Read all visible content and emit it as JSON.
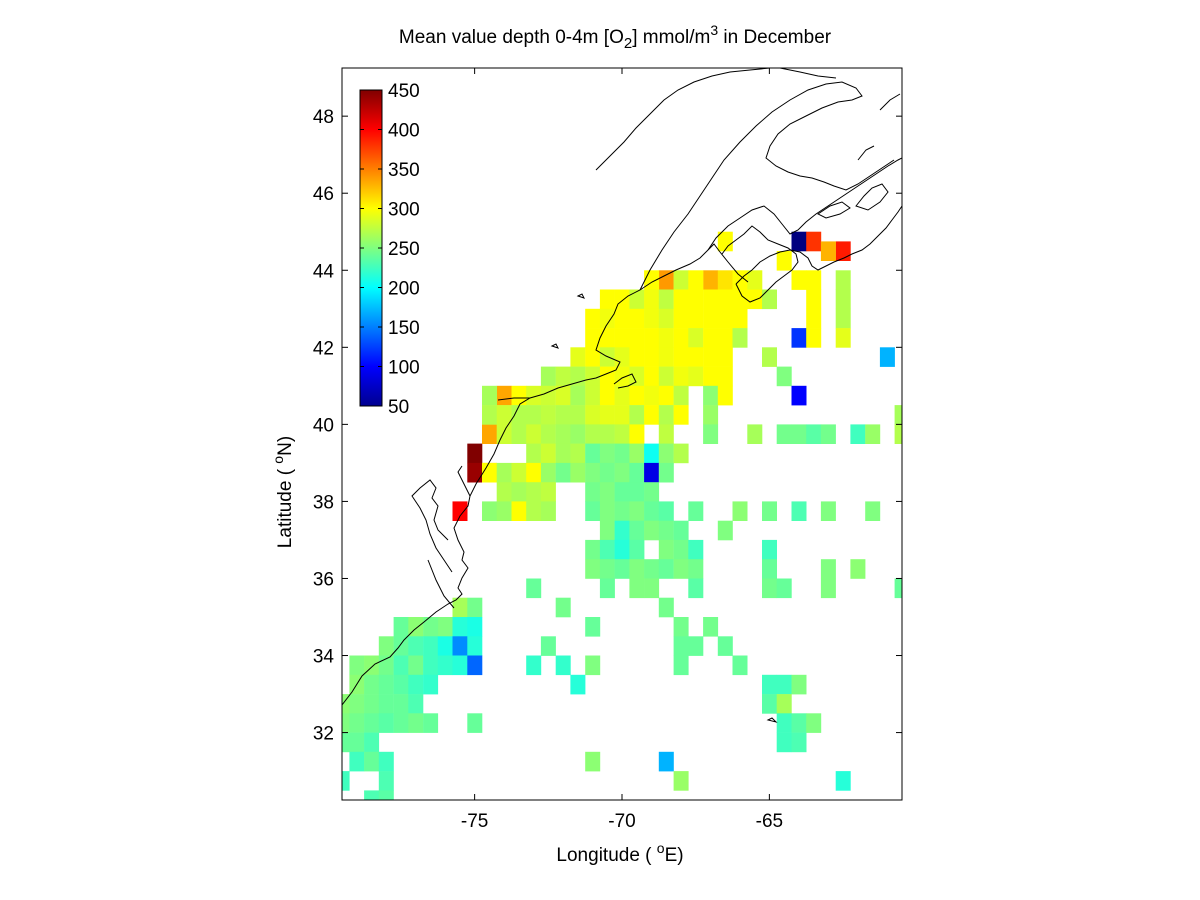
{
  "chart_data": {
    "type": "heatmap",
    "title_prefix": "Mean value depth 0-4m [O",
    "title_sub": "2",
    "title_mid": "] mmol/m",
    "title_sup": "3",
    "title_suffix": " in December",
    "xlabel_prefix": "Longitude ( ",
    "xlabel_sup": "o",
    "xlabel_suffix": "E)",
    "ylabel_prefix": "Latitude ( ",
    "ylabel_sup": "o",
    "ylabel_suffix": "N)",
    "xlim": [
      -79.5,
      -60.5
    ],
    "ylim": [
      30.25,
      49.25
    ],
    "x_ticks": [
      -75,
      -70,
      -65
    ],
    "x_tick_labels": [
      "-75",
      "-70",
      "-65"
    ],
    "y_ticks": [
      32,
      34,
      36,
      38,
      40,
      42,
      44,
      46,
      48
    ],
    "y_tick_labels": [
      "32",
      "34",
      "36",
      "38",
      "40",
      "42",
      "44",
      "46",
      "48"
    ],
    "colorbar": {
      "range": [
        50,
        450
      ],
      "ticks": [
        50,
        100,
        150,
        200,
        250,
        300,
        350,
        400,
        450
      ],
      "tick_labels": [
        "50",
        "100",
        "150",
        "200",
        "250",
        "300",
        "350",
        "400",
        "450"
      ],
      "colormap": "jet"
    },
    "cell_size_deg": 0.5,
    "cells": [
      [
        -75,
        39.25,
        450
      ],
      [
        -75,
        38.75,
        440
      ],
      [
        -75.5,
        37.75,
        400
      ],
      [
        -74.5,
        38.75,
        330
      ],
      [
        -74,
        40.75,
        335
      ],
      [
        -74.5,
        39.75,
        335
      ],
      [
        -64,
        44.75,
        40
      ],
      [
        -63.5,
        44.75,
        380
      ],
      [
        -62.5,
        44.5,
        390
      ],
      [
        -63,
        44.5,
        330
      ],
      [
        -68.5,
        43.75,
        340
      ],
      [
        -67,
        43.75,
        330
      ],
      [
        -66.5,
        43.75,
        310
      ],
      [
        -66,
        43.75,
        300
      ],
      [
        -69,
        43.75,
        300
      ],
      [
        -68,
        43.75,
        280
      ],
      [
        -67.5,
        43.75,
        300
      ],
      [
        -65.5,
        43.75,
        290
      ],
      [
        -64,
        43.75,
        300
      ],
      [
        -63.5,
        43.75,
        300
      ],
      [
        -62.5,
        43.75,
        270
      ],
      [
        -64.5,
        44.25,
        300
      ],
      [
        -66.5,
        44.75,
        300
      ],
      [
        -70.5,
        43.25,
        300
      ],
      [
        -70,
        43.25,
        300
      ],
      [
        -69.5,
        43.25,
        280
      ],
      [
        -69,
        43.25,
        295
      ],
      [
        -68.5,
        43.25,
        275
      ],
      [
        -68,
        43.25,
        300
      ],
      [
        -67.5,
        43.25,
        300
      ],
      [
        -67,
        43.25,
        300
      ],
      [
        -66.5,
        43.25,
        300
      ],
      [
        -66,
        43.25,
        300
      ],
      [
        -65.5,
        43.25,
        300
      ],
      [
        -65,
        43.25,
        270
      ],
      [
        -63.5,
        43.25,
        300
      ],
      [
        -62.5,
        43.25,
        270
      ],
      [
        -71,
        42.75,
        300
      ],
      [
        -70.5,
        42.75,
        295
      ],
      [
        -70,
        42.75,
        300
      ],
      [
        -69.5,
        42.75,
        300
      ],
      [
        -69,
        42.75,
        295
      ],
      [
        -68.5,
        42.75,
        285
      ],
      [
        -68,
        42.75,
        300
      ],
      [
        -67.5,
        42.75,
        300
      ],
      [
        -67,
        42.75,
        300
      ],
      [
        -66.5,
        42.75,
        300
      ],
      [
        -66,
        42.75,
        300
      ],
      [
        -63.5,
        42.75,
        300
      ],
      [
        -62.5,
        42.75,
        270
      ],
      [
        -71,
        42.25,
        300
      ],
      [
        -70.5,
        42.25,
        300
      ],
      [
        -70,
        42.25,
        300
      ],
      [
        -69.5,
        42.25,
        300
      ],
      [
        -69,
        42.25,
        300
      ],
      [
        -68.5,
        42.25,
        295
      ],
      [
        -68,
        42.25,
        300
      ],
      [
        -67.5,
        42.25,
        285
      ],
      [
        -67,
        42.25,
        300
      ],
      [
        -66.5,
        42.25,
        300
      ],
      [
        -66,
        42.25,
        270
      ],
      [
        -64,
        42.25,
        120
      ],
      [
        -63.5,
        42.25,
        300
      ],
      [
        -62.5,
        42.25,
        290
      ],
      [
        -71.5,
        41.75,
        290
      ],
      [
        -71,
        41.75,
        300
      ],
      [
        -70.5,
        41.75,
        280
      ],
      [
        -70,
        41.75,
        290
      ],
      [
        -69.5,
        41.75,
        300
      ],
      [
        -69,
        41.75,
        300
      ],
      [
        -68.5,
        41.75,
        295
      ],
      [
        -68,
        41.75,
        300
      ],
      [
        -67.5,
        41.75,
        300
      ],
      [
        -67,
        41.75,
        300
      ],
      [
        -66.5,
        41.75,
        300
      ],
      [
        -65,
        41.75,
        270
      ],
      [
        -61,
        41.75,
        170
      ],
      [
        -72.5,
        41.25,
        265
      ],
      [
        -72,
        41.25,
        275
      ],
      [
        -71.5,
        41.25,
        270
      ],
      [
        -71,
        41.25,
        280
      ],
      [
        -70.5,
        41.25,
        300
      ],
      [
        -70,
        41.25,
        295
      ],
      [
        -69.5,
        41.25,
        285
      ],
      [
        -69,
        41.25,
        300
      ],
      [
        -68.5,
        41.25,
        280
      ],
      [
        -68,
        41.25,
        295
      ],
      [
        -67.5,
        41.25,
        290
      ],
      [
        -67,
        41.25,
        300
      ],
      [
        -66.5,
        41.25,
        300
      ],
      [
        -64.5,
        41.25,
        250
      ],
      [
        -74.5,
        40.75,
        265
      ],
      [
        -73.5,
        40.75,
        300
      ],
      [
        -73,
        40.75,
        285
      ],
      [
        -72.5,
        40.75,
        280
      ],
      [
        -72,
        40.75,
        285
      ],
      [
        -71.5,
        40.75,
        265
      ],
      [
        -71,
        40.75,
        280
      ],
      [
        -70.5,
        40.75,
        300
      ],
      [
        -70,
        40.75,
        290
      ],
      [
        -69.5,
        40.75,
        300
      ],
      [
        -69,
        40.75,
        295
      ],
      [
        -68.5,
        40.75,
        300
      ],
      [
        -68,
        40.75,
        275
      ],
      [
        -67,
        40.75,
        255
      ],
      [
        -66.5,
        40.75,
        300
      ],
      [
        -64,
        40.75,
        100
      ],
      [
        -74.5,
        40.25,
        270
      ],
      [
        -74,
        40.25,
        280
      ],
      [
        -73.5,
        40.25,
        270
      ],
      [
        -73,
        40.25,
        270
      ],
      [
        -72.5,
        40.25,
        275
      ],
      [
        -72,
        40.25,
        270
      ],
      [
        -71.5,
        40.25,
        270
      ],
      [
        -71,
        40.25,
        285
      ],
      [
        -70.5,
        40.25,
        290
      ],
      [
        -70,
        40.25,
        290
      ],
      [
        -69.5,
        40.25,
        270
      ],
      [
        -69,
        40.25,
        300
      ],
      [
        -68.5,
        40.25,
        270
      ],
      [
        -68,
        40.25,
        300
      ],
      [
        -67,
        40.25,
        260
      ],
      [
        -60.5,
        40.25,
        265
      ],
      [
        -74,
        39.75,
        280
      ],
      [
        -73.5,
        39.75,
        270
      ],
      [
        -73,
        39.75,
        280
      ],
      [
        -72.5,
        39.75,
        270
      ],
      [
        -72,
        39.75,
        265
      ],
      [
        -71.5,
        39.75,
        260
      ],
      [
        -71,
        39.75,
        270
      ],
      [
        -70.5,
        39.75,
        270
      ],
      [
        -70,
        39.75,
        275
      ],
      [
        -69.5,
        39.75,
        300
      ],
      [
        -68.5,
        39.75,
        275
      ],
      [
        -67,
        39.75,
        250
      ],
      [
        -65.5,
        39.75,
        265
      ],
      [
        -64.5,
        39.75,
        245
      ],
      [
        -64,
        39.75,
        245
      ],
      [
        -63.5,
        39.75,
        235
      ],
      [
        -63,
        39.75,
        245
      ],
      [
        -62,
        39.75,
        225
      ],
      [
        -61.5,
        39.75,
        260
      ],
      [
        -60.5,
        39.75,
        270
      ],
      [
        -73,
        39.25,
        270
      ],
      [
        -72.5,
        39.25,
        280
      ],
      [
        -72,
        39.25,
        265
      ],
      [
        -71.5,
        39.25,
        270
      ],
      [
        -71,
        39.25,
        240
      ],
      [
        -70.5,
        39.25,
        250
      ],
      [
        -70,
        39.25,
        245
      ],
      [
        -69.5,
        39.25,
        260
      ],
      [
        -69,
        39.25,
        205
      ],
      [
        -68.5,
        39.25,
        255
      ],
      [
        -68,
        39.25,
        270
      ],
      [
        -74.5,
        38.75,
        300
      ],
      [
        -74,
        38.75,
        265
      ],
      [
        -73.5,
        38.75,
        280
      ],
      [
        -73,
        38.75,
        300
      ],
      [
        -72.5,
        38.75,
        260
      ],
      [
        -72,
        38.75,
        245
      ],
      [
        -71.5,
        38.75,
        260
      ],
      [
        -71,
        38.75,
        250
      ],
      [
        -70.5,
        38.75,
        245
      ],
      [
        -70,
        38.75,
        250
      ],
      [
        -69.5,
        38.75,
        240
      ],
      [
        -69,
        38.75,
        90
      ],
      [
        -68.5,
        38.75,
        245
      ],
      [
        -74,
        38.25,
        270
      ],
      [
        -73.5,
        38.25,
        265
      ],
      [
        -73,
        38.25,
        270
      ],
      [
        -72.5,
        38.25,
        275
      ],
      [
        -71,
        38.25,
        245
      ],
      [
        -70.5,
        38.25,
        250
      ],
      [
        -70,
        38.25,
        240
      ],
      [
        -69.5,
        38.25,
        240
      ],
      [
        -69,
        38.25,
        245
      ],
      [
        -74.5,
        37.75,
        255
      ],
      [
        -74,
        37.75,
        260
      ],
      [
        -73.5,
        37.75,
        300
      ],
      [
        -73,
        37.75,
        270
      ],
      [
        -72.5,
        37.75,
        265
      ],
      [
        -71,
        37.75,
        240
      ],
      [
        -70.5,
        37.75,
        250
      ],
      [
        -70,
        37.75,
        245
      ],
      [
        -69.5,
        37.75,
        250
      ],
      [
        -69,
        37.75,
        240
      ],
      [
        -68.5,
        37.75,
        235
      ],
      [
        -67.5,
        37.75,
        240
      ],
      [
        -66,
        37.75,
        255
      ],
      [
        -65,
        37.75,
        245
      ],
      [
        -64,
        37.75,
        230
      ],
      [
        -63,
        37.75,
        250
      ],
      [
        -61.5,
        37.75,
        250
      ],
      [
        -70.5,
        37.25,
        250
      ],
      [
        -70,
        37.25,
        220
      ],
      [
        -69.5,
        37.25,
        240
      ],
      [
        -69,
        37.25,
        250
      ],
      [
        -68.5,
        37.25,
        245
      ],
      [
        -68,
        37.25,
        240
      ],
      [
        -66.5,
        37.25,
        250
      ],
      [
        -71,
        36.75,
        245
      ],
      [
        -70.5,
        36.75,
        230
      ],
      [
        -70,
        36.75,
        215
      ],
      [
        -69.5,
        36.75,
        235
      ],
      [
        -68.5,
        36.75,
        250
      ],
      [
        -68,
        36.75,
        245
      ],
      [
        -67.5,
        36.75,
        225
      ],
      [
        -65,
        36.75,
        225
      ],
      [
        -71,
        36.25,
        250
      ],
      [
        -70.5,
        36.25,
        245
      ],
      [
        -70,
        36.25,
        240
      ],
      [
        -69.5,
        36.25,
        250
      ],
      [
        -69,
        36.25,
        245
      ],
      [
        -68.5,
        36.25,
        240
      ],
      [
        -68,
        36.25,
        250
      ],
      [
        -67.5,
        36.25,
        245
      ],
      [
        -65,
        36.25,
        240
      ],
      [
        -63,
        36.25,
        250
      ],
      [
        -62,
        36.25,
        255
      ],
      [
        -73,
        35.75,
        240
      ],
      [
        -70.5,
        35.75,
        240
      ],
      [
        -69.5,
        35.75,
        250
      ],
      [
        -69,
        35.75,
        250
      ],
      [
        -67.5,
        35.75,
        235
      ],
      [
        -65,
        35.75,
        245
      ],
      [
        -64.5,
        35.75,
        240
      ],
      [
        -63,
        35.75,
        250
      ],
      [
        -60.5,
        35.75,
        240
      ],
      [
        -75.5,
        35.25,
        265
      ],
      [
        -75,
        35.25,
        245
      ],
      [
        -72,
        35.25,
        245
      ],
      [
        -68.5,
        35.25,
        245
      ],
      [
        -76,
        34.75,
        250
      ],
      [
        -75.5,
        34.75,
        215
      ],
      [
        -75,
        34.75,
        210
      ],
      [
        -77.5,
        34.75,
        240
      ],
      [
        -77,
        34.75,
        255
      ],
      [
        -76.5,
        34.75,
        245
      ],
      [
        -71,
        34.75,
        240
      ],
      [
        -68,
        34.75,
        245
      ],
      [
        -67,
        34.75,
        245
      ],
      [
        -78,
        34.25,
        250
      ],
      [
        -77.5,
        34.25,
        240
      ],
      [
        -77,
        34.25,
        230
      ],
      [
        -76.5,
        34.25,
        225
      ],
      [
        -76,
        34.25,
        210
      ],
      [
        -75.5,
        34.25,
        155
      ],
      [
        -75,
        34.25,
        215
      ],
      [
        -72.5,
        34.25,
        240
      ],
      [
        -67.5,
        34.25,
        240
      ],
      [
        -66.5,
        34.25,
        240
      ],
      [
        -68,
        34.25,
        240
      ],
      [
        -79,
        33.75,
        250
      ],
      [
        -78.5,
        33.75,
        255
      ],
      [
        -78,
        33.75,
        245
      ],
      [
        -77.5,
        33.75,
        230
      ],
      [
        -77,
        33.75,
        245
      ],
      [
        -76.5,
        33.75,
        225
      ],
      [
        -76,
        33.75,
        220
      ],
      [
        -75.5,
        33.75,
        215
      ],
      [
        -75,
        33.75,
        140
      ],
      [
        -73,
        33.75,
        220
      ],
      [
        -72,
        33.75,
        220
      ],
      [
        -71,
        33.75,
        250
      ],
      [
        -68,
        33.75,
        240
      ],
      [
        -66,
        33.75,
        240
      ],
      [
        -79,
        33.25,
        255
      ],
      [
        -78.5,
        33.25,
        245
      ],
      [
        -78,
        33.25,
        240
      ],
      [
        -77.5,
        33.25,
        235
      ],
      [
        -77,
        33.25,
        225
      ],
      [
        -76.5,
        33.25,
        220
      ],
      [
        -71.5,
        33.25,
        215
      ],
      [
        -65,
        33.25,
        225
      ],
      [
        -64.5,
        33.25,
        225
      ],
      [
        -64,
        33.25,
        250
      ],
      [
        -79.5,
        32.75,
        255
      ],
      [
        -79,
        32.75,
        250
      ],
      [
        -78.5,
        32.75,
        245
      ],
      [
        -78,
        32.75,
        240
      ],
      [
        -77.5,
        32.75,
        240
      ],
      [
        -77,
        32.75,
        230
      ],
      [
        -65,
        32.75,
        235
      ],
      [
        -64.5,
        32.75,
        265
      ],
      [
        -79.5,
        32.25,
        250
      ],
      [
        -79,
        32.25,
        245
      ],
      [
        -78.5,
        32.25,
        240
      ],
      [
        -78,
        32.25,
        235
      ],
      [
        -77.5,
        32.25,
        240
      ],
      [
        -77,
        32.25,
        245
      ],
      [
        -76.5,
        32.25,
        240
      ],
      [
        -75,
        32.25,
        240
      ],
      [
        -64.5,
        32.25,
        225
      ],
      [
        -64,
        32.25,
        235
      ],
      [
        -63.5,
        32.25,
        250
      ],
      [
        -79.5,
        31.75,
        240
      ],
      [
        -79,
        31.75,
        240
      ],
      [
        -78.5,
        31.75,
        230
      ],
      [
        -64.5,
        31.75,
        225
      ],
      [
        -64,
        31.75,
        230
      ],
      [
        -79,
        31.25,
        225
      ],
      [
        -78.5,
        31.25,
        240
      ],
      [
        -78,
        31.25,
        225
      ],
      [
        -71,
        31.25,
        255
      ],
      [
        -68.5,
        31.25,
        170
      ],
      [
        -79.5,
        30.75,
        225
      ],
      [
        -78,
        30.75,
        230
      ],
      [
        -68,
        30.75,
        260
      ],
      [
        -62.5,
        30.75,
        215
      ],
      [
        -78.5,
        30.25,
        230
      ],
      [
        -78,
        30.25,
        235
      ]
    ]
  }
}
